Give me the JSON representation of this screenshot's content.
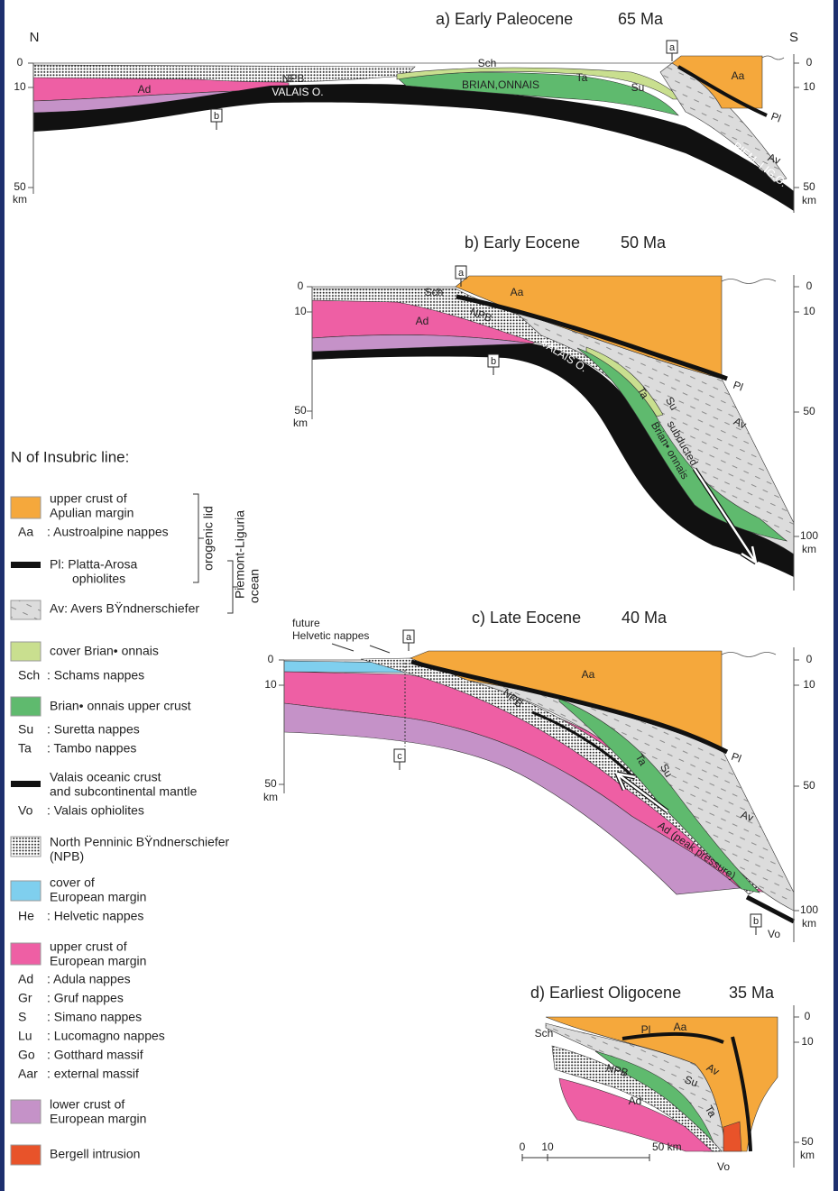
{
  "panels": [
    {
      "title": "a) Early Paleocene",
      "age": "65 Ma",
      "compass": [
        "N",
        "S"
      ],
      "depth_left": [
        "0",
        "10",
        "50",
        "km"
      ],
      "depth_right": [
        "0",
        "10",
        "50",
        "km"
      ],
      "labels": [
        "Sch",
        "NPB",
        "VALAIS O.",
        "Ad",
        "BRIAN,ONNAIS",
        "Ta",
        "Su",
        "Aa",
        "Pl",
        "Av",
        "PIEM.-LIG.O."
      ],
      "markers": [
        "a",
        "b"
      ]
    },
    {
      "title": "b) Early Eocene",
      "age": "50 Ma",
      "depth_left": [
        "0",
        "10",
        "50",
        "km"
      ],
      "depth_right": [
        "0",
        "10",
        "50",
        "100",
        "km"
      ],
      "labels": [
        "Sch",
        "Aa",
        "NPB",
        "Ad",
        "VALAIS O.",
        "Pl",
        "Av",
        "Ta",
        "Su",
        "subducted",
        "Brian• onnais"
      ],
      "markers": [
        "a",
        "b"
      ]
    },
    {
      "title": "c) Late Eocene",
      "age": "40 Ma",
      "depth_left": [
        "0",
        "10",
        "50",
        "km"
      ],
      "depth_right": [
        "0",
        "10",
        "50",
        "100",
        "km"
      ],
      "labels": [
        "future",
        "Helvetic nappes",
        "Aa",
        "NPB",
        "Pl",
        "Ta",
        "Su",
        "Av",
        "Ad (peak pressure)",
        "Vo"
      ],
      "markers": [
        "a",
        "c",
        "b"
      ]
    },
    {
      "title": "d) Earliest Oligocene",
      "age": "35 Ma",
      "depth_right": [
        "0",
        "10",
        "50",
        "km"
      ],
      "labels": [
        "Sch",
        "Pl",
        "Aa",
        "NPB",
        "Av",
        "Su",
        "Ad",
        "Ta",
        "Vo"
      ],
      "scale": [
        "0",
        "10",
        "50 km"
      ]
    }
  ],
  "legend": {
    "heading": "N of Insubric line:",
    "items": [
      {
        "lines": [
          "upper crust of",
          "Apulian margin"
        ]
      },
      {
        "code": "Aa",
        "text": ": Austroalpine nappes"
      },
      {
        "lines": [
          "Pl: Platta-Arosa",
          "ophiolites"
        ]
      },
      {
        "lines": [
          "Av: Avers BŸndnerschiefer"
        ]
      },
      {
        "lines": [
          "cover Brian• onnais"
        ]
      },
      {
        "code": "Sch",
        "text": ": Schams nappes"
      },
      {
        "lines": [
          "Brian• onnais upper crust"
        ]
      },
      {
        "code": "Su",
        "text": ": Suretta nappes"
      },
      {
        "code": "Ta",
        "text": ": Tambo nappes"
      },
      {
        "lines": [
          "Valais oceanic crust",
          "and subcontinental mantle"
        ]
      },
      {
        "code": "Vo",
        "text": ": Valais ophiolites"
      },
      {
        "lines": [
          "North Penninic BŸndnerschiefer",
          "(NPB)"
        ]
      },
      {
        "lines": [
          "cover of",
          "European margin"
        ]
      },
      {
        "code": "He",
        "text": ": Helvetic nappes"
      },
      {
        "lines": [
          "upper crust of",
          "European margin"
        ]
      },
      {
        "code": "Ad",
        "text": ": Adula nappes"
      },
      {
        "code": "Gr",
        "text": ": Gruf nappes"
      },
      {
        "code": "S",
        "text": ": Simano nappes"
      },
      {
        "code": "Lu",
        "text": ": Lucomagno nappes"
      },
      {
        "code": "Go",
        "text": ": Gotthard massif"
      },
      {
        "code": "Aar",
        "text": ": external massif"
      },
      {
        "lines": [
          "lower crust of",
          "European margin"
        ]
      },
      {
        "lines": [
          "Bergell intrusion"
        ]
      }
    ],
    "brackets": [
      "orogenic lid",
      "Piemont-Liguria",
      "ocean"
    ]
  }
}
